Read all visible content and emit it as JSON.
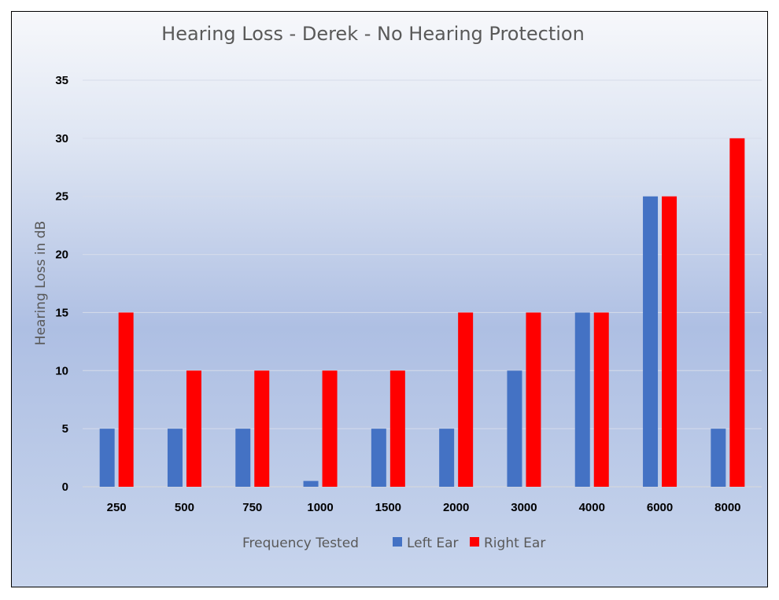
{
  "chart_data": {
    "type": "bar",
    "title": "Hearing Loss - Derek - No Hearing Protection",
    "xlabel": "Frequency Tested",
    "ylabel": "Hearing Loss in dB",
    "categories": [
      "250",
      "500",
      "750",
      "1000",
      "1500",
      "2000",
      "3000",
      "4000",
      "6000",
      "8000"
    ],
    "series": [
      {
        "name": "Left Ear",
        "color": "#4472c4",
        "values": [
          5,
          5,
          5,
          0.5,
          5,
          5,
          10,
          15,
          25,
          5
        ]
      },
      {
        "name": "Right Ear",
        "color": "#ff0000",
        "values": [
          15,
          10,
          10,
          10,
          10,
          15,
          15,
          15,
          25,
          30
        ]
      }
    ],
    "ylim": [
      0,
      35
    ],
    "yticks": [
      0,
      5,
      10,
      15,
      20,
      25,
      30,
      35
    ],
    "grid": true,
    "legend": "bottom"
  }
}
